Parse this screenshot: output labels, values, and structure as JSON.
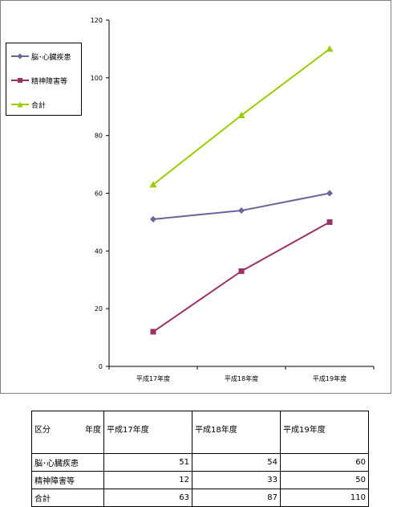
{
  "chart_data": {
    "type": "line",
    "categories": [
      "平成17年度",
      "平成18年度",
      "平成19年度"
    ],
    "series": [
      {
        "name": "脳･心臓疾患",
        "values": [
          51,
          54,
          60
        ],
        "color": "#666699",
        "marker": "diamond"
      },
      {
        "name": "精神障害等",
        "values": [
          12,
          33,
          50
        ],
        "color": "#993366",
        "marker": "square"
      },
      {
        "name": "合計",
        "values": [
          63,
          87,
          110
        ],
        "color": "#99cc00",
        "marker": "triangle"
      }
    ],
    "ylim": [
      0,
      120
    ],
    "yticks": [
      0,
      20,
      40,
      60,
      80,
      100,
      120
    ],
    "title": "",
    "xlabel": "",
    "ylabel": "",
    "legend_position": "left",
    "grid": false
  },
  "table": {
    "corner_left": "区分",
    "corner_right": "年度",
    "columns": [
      "平成17年度",
      "平成18年度",
      "平成19年度"
    ],
    "rows": [
      {
        "label": "脳･心臓疾患",
        "values": [
          "51",
          "54",
          "60"
        ]
      },
      {
        "label": "精神障害等",
        "values": [
          "12",
          "33",
          "50"
        ]
      },
      {
        "label": "合計",
        "values": [
          "63",
          "87",
          "110"
        ]
      }
    ]
  }
}
